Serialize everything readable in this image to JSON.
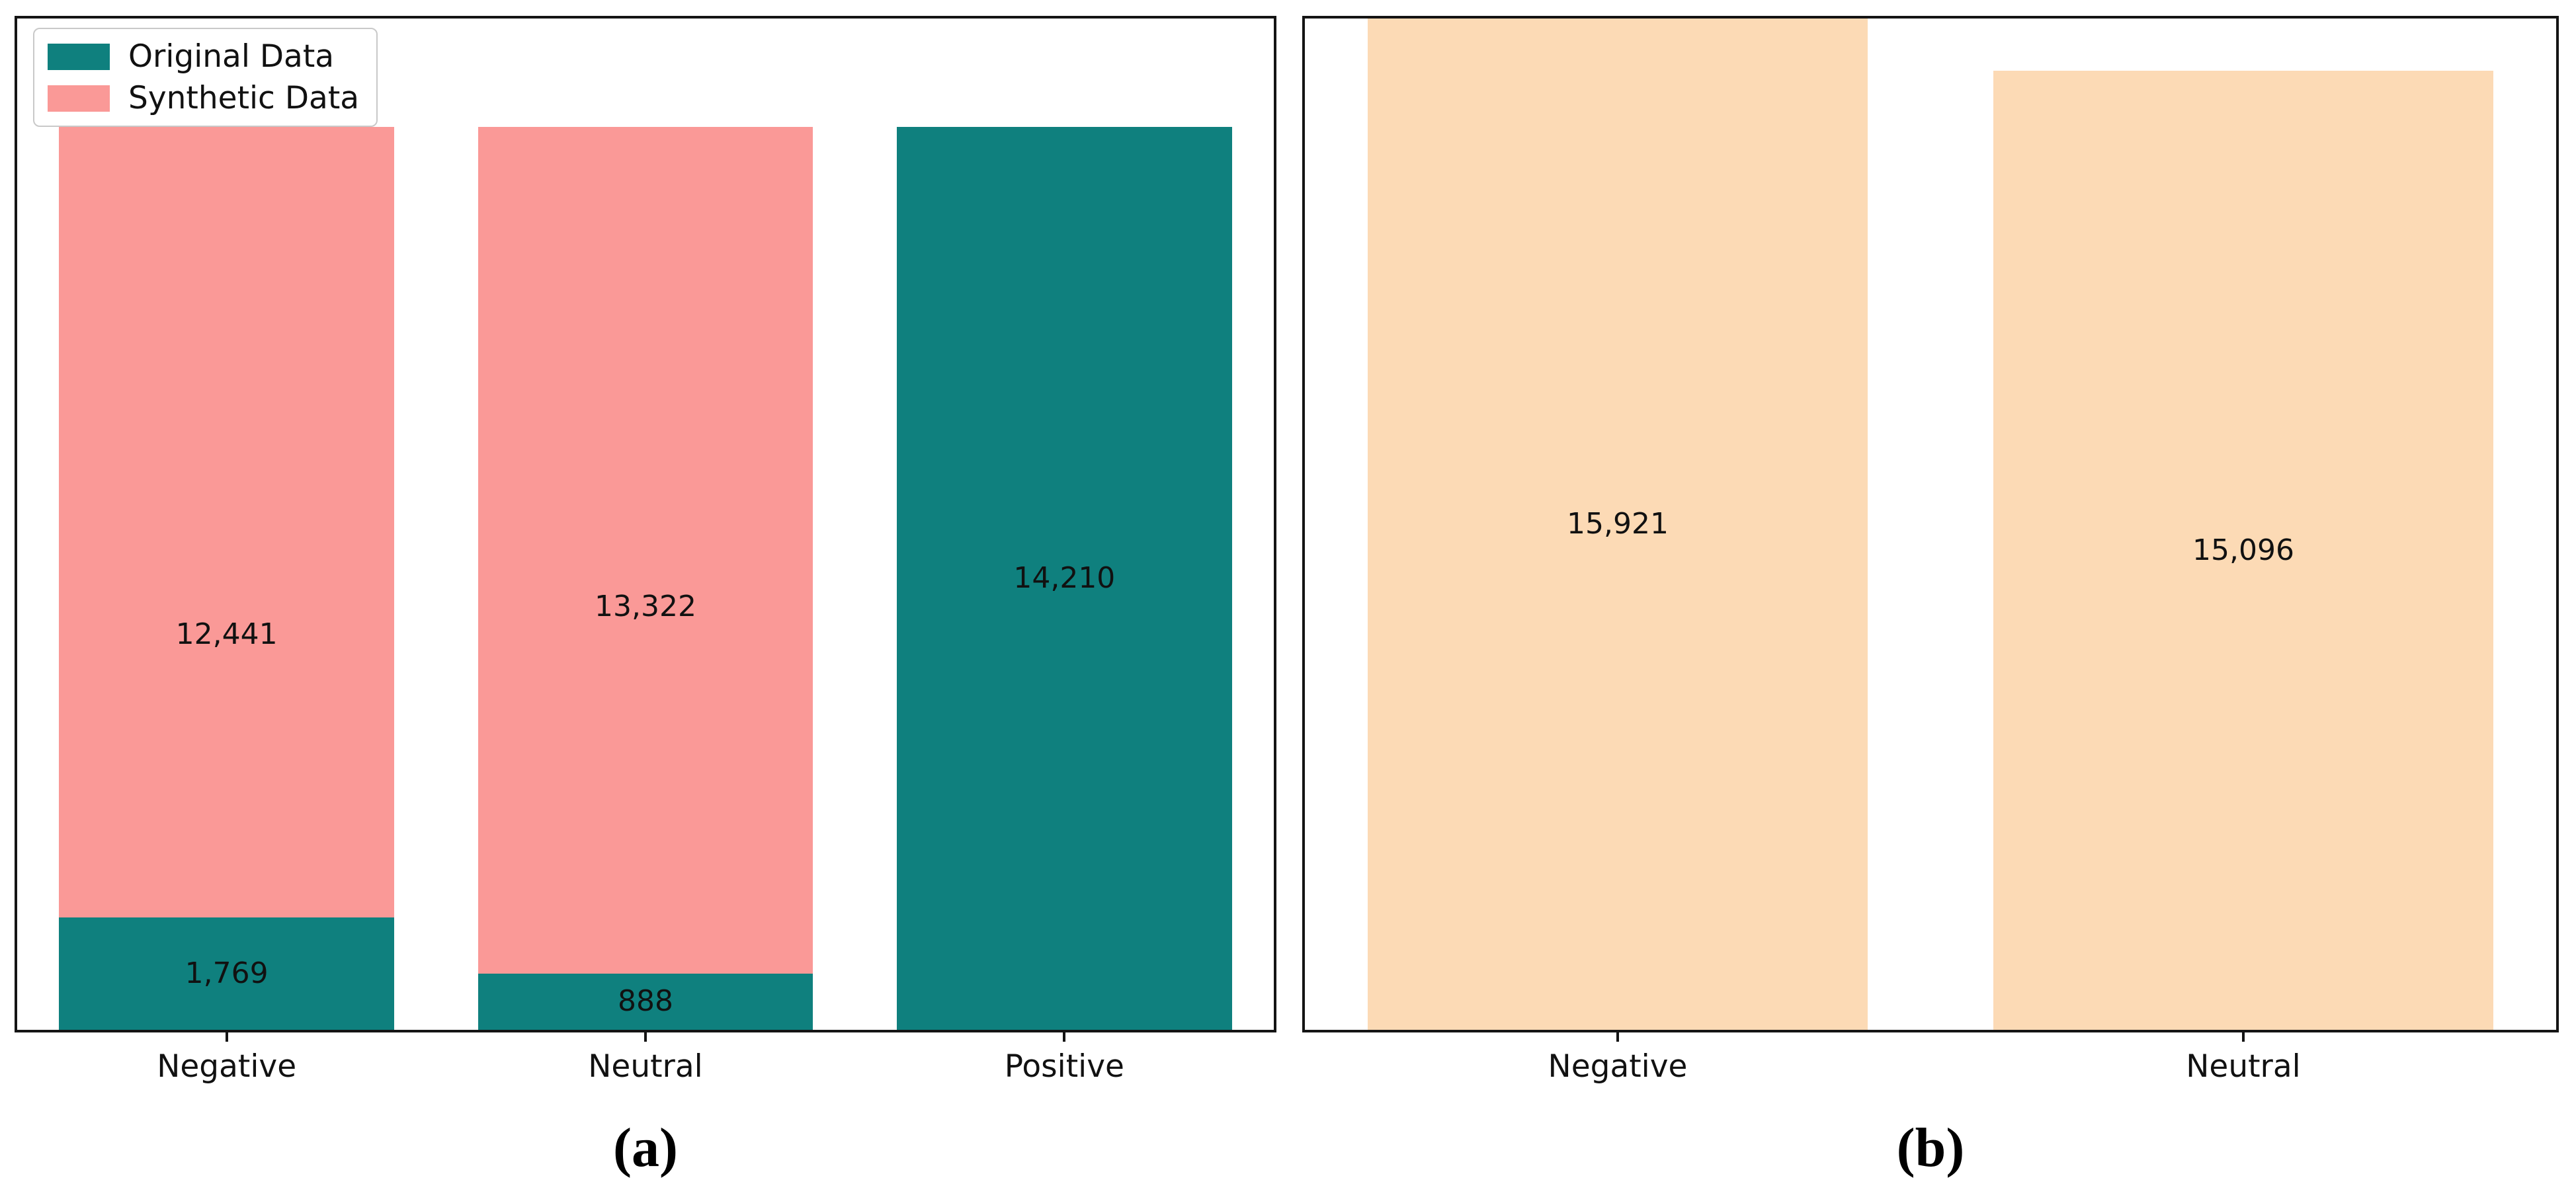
{
  "captions": {
    "a": "(a)",
    "b": "(b)"
  },
  "colors": {
    "original_teal": "#0f807e",
    "synthetic_pink": "#fa9997",
    "combined_peach": "#fcdab5",
    "axis": "#141414"
  },
  "chart_data": [
    {
      "id": "a",
      "type": "bar",
      "stacked": true,
      "title": "",
      "xlabel": "",
      "ylabel": "",
      "grid": false,
      "legend_position": "upper left",
      "categories": [
        "Negative",
        "Neutral",
        "Positive"
      ],
      "series": [
        {
          "name": "Original Data",
          "color": "#0f807e",
          "values": [
            1769,
            888,
            14210
          ],
          "labels": [
            "1,769",
            "888",
            "14,210"
          ]
        },
        {
          "name": "Synthetic Data",
          "color": "#fa9997",
          "values": [
            12441,
            13322,
            0
          ],
          "labels": [
            "12,441",
            "13,322",
            ""
          ]
        }
      ],
      "ylim": [
        0,
        15921
      ],
      "bar_width_frac": 0.8,
      "caption": "(a)"
    },
    {
      "id": "b",
      "type": "bar",
      "stacked": false,
      "title": "",
      "xlabel": "",
      "ylabel": "",
      "grid": false,
      "legend_position": null,
      "categories": [
        "Negative",
        "Neutral"
      ],
      "series": [
        {
          "name": "",
          "color": "#fcdab5",
          "values": [
            15921,
            15096
          ],
          "labels": [
            "15,921",
            "15,096"
          ]
        }
      ],
      "ylim": [
        0,
        15921
      ],
      "bar_width_frac": 0.8,
      "caption": "(b)"
    }
  ]
}
